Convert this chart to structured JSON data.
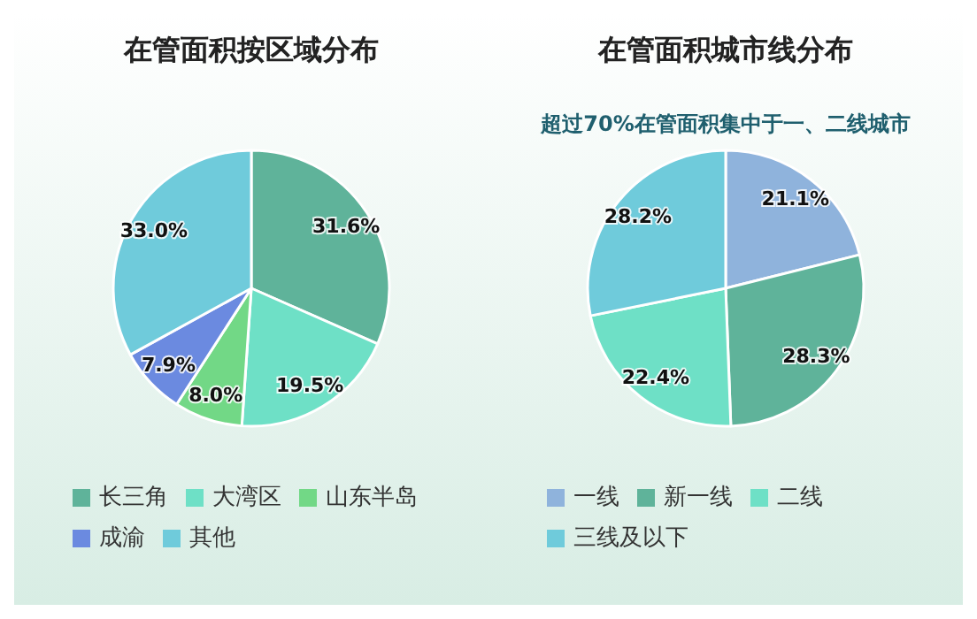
{
  "chart_data": [
    {
      "type": "pie",
      "title": "在管面积按区域分布",
      "categories": [
        "长三角",
        "大湾区",
        "山东半岛",
        "成渝",
        "其他"
      ],
      "values": [
        31.6,
        19.5,
        8.0,
        7.9,
        33.0
      ],
      "colors": [
        "#5fb39a",
        "#6ee0c6",
        "#72d886",
        "#6b8ae0",
        "#6fcbdb"
      ],
      "value_labels": [
        "31.6%",
        "19.5%",
        "8.0%",
        "7.9%",
        "33.0%"
      ],
      "legend": "bottom"
    },
    {
      "type": "pie",
      "title": "在管面积城市线分布",
      "subtitle": "超过70%在管面积集中于一、二线城市",
      "categories": [
        "一线",
        "新一线",
        "二线",
        "三线及以下"
      ],
      "values": [
        21.1,
        28.3,
        22.4,
        28.2
      ],
      "colors": [
        "#8fb3dc",
        "#5fb39a",
        "#6ee0c6",
        "#6fcbdb"
      ],
      "value_labels": [
        "21.1%",
        "28.3%",
        "22.4%",
        "28.2%"
      ],
      "legend": "bottom"
    }
  ]
}
